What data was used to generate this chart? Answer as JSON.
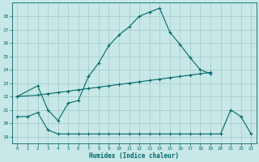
{
  "xlabel": "Humidex (Indice chaleur)",
  "background_color": "#c8e8e8",
  "grid_color": "#a0c8c8",
  "line_color": "#006868",
  "xlim": [
    -0.5,
    23.5
  ],
  "ylim": [
    18.5,
    29.0
  ],
  "yticks": [
    19,
    20,
    21,
    22,
    23,
    24,
    25,
    26,
    27,
    28
  ],
  "xticks": [
    0,
    1,
    2,
    3,
    4,
    5,
    6,
    7,
    8,
    9,
    10,
    11,
    12,
    13,
    14,
    15,
    16,
    17,
    18,
    19,
    20,
    21,
    22,
    23
  ],
  "line1_x": [
    0,
    2,
    3,
    4,
    5,
    6,
    7,
    8,
    9,
    10,
    11,
    12,
    13,
    14,
    15,
    16,
    17,
    18,
    19
  ],
  "line1_y": [
    22.0,
    22.8,
    21.0,
    20.2,
    21.5,
    21.7,
    23.5,
    24.5,
    25.8,
    26.6,
    27.2,
    28.0,
    28.3,
    28.6,
    26.8,
    25.9,
    24.9,
    24.0,
    23.7
  ],
  "line2_x": [
    0,
    2,
    3,
    4,
    5,
    6,
    7,
    8,
    9,
    10,
    11,
    12,
    13,
    14,
    15,
    16,
    17,
    18,
    19
  ],
  "line2_y": [
    22.0,
    22.1,
    22.2,
    22.3,
    22.4,
    22.5,
    22.6,
    22.7,
    22.8,
    22.9,
    23.0,
    23.1,
    23.2,
    23.3,
    23.4,
    23.5,
    23.6,
    23.7,
    23.8
  ],
  "line3_x": [
    0,
    1,
    2,
    3,
    4,
    5,
    6,
    7,
    8,
    9,
    10,
    11,
    12,
    13,
    14,
    15,
    16,
    17,
    18,
    19,
    20,
    21,
    22,
    23
  ],
  "line3_y": [
    20.5,
    20.5,
    20.8,
    19.5,
    19.2,
    19.2,
    19.2,
    19.2,
    19.2,
    19.2,
    19.2,
    19.2,
    19.2,
    19.2,
    19.2,
    19.2,
    19.2,
    19.2,
    19.2,
    19.2,
    19.2,
    21.0,
    20.5,
    19.2
  ]
}
